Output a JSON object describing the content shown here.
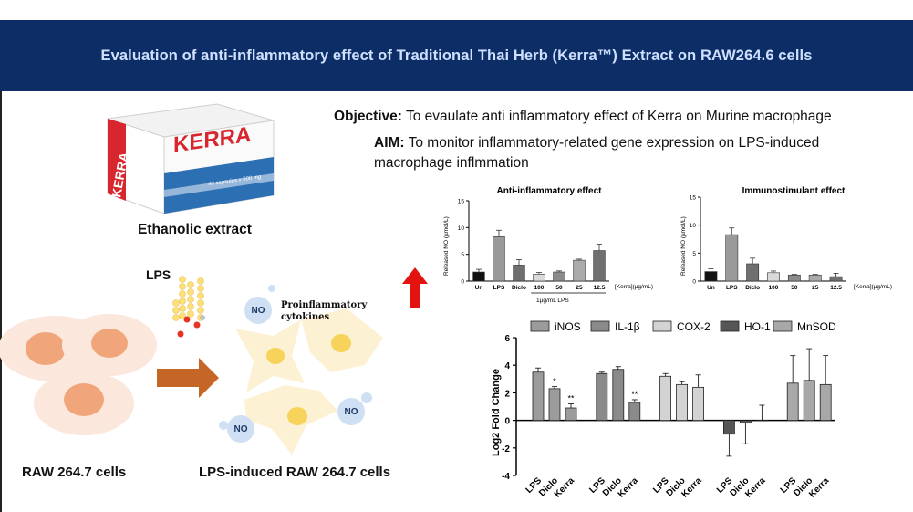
{
  "banner": {
    "title": "Evaluation of anti-inflammatory effect of Traditional Thai Herb (Kerra™) Extract on RAW264.6 cells"
  },
  "product": {
    "brand": "KERRA",
    "side_brand": "KERRA",
    "capsules": "40 capsules x 500 mg",
    "caption": "Ethanolic extract"
  },
  "objective": {
    "label": "Objective:",
    "text": "To evaulate anti inflammatory effect of Kerra on Murine macrophage"
  },
  "aim": {
    "label": "AIM:",
    "text": "To monitor inflammatory-related gene expression on LPS-induced macrophage inflmmation"
  },
  "diagram": {
    "lps": "LPS",
    "no": "NO",
    "proinflammatory": [
      "Proinflammatory",
      "cytokines"
    ],
    "raw_cells": "RAW 264.7 cells",
    "lps_cells": "LPS-induced RAW 264.7 cells"
  },
  "chart_data": [
    {
      "type": "bar",
      "title": "Anti-inflammatory effect",
      "ylabel": "Released NO (µmol/L)",
      "xlabel": "[Kerra](µg/mL)",
      "sublabel": "1µg/mL LPS",
      "categories": [
        "Un",
        "LPS",
        "Diclo",
        "100",
        "50",
        "25",
        "12.5"
      ],
      "values": [
        1.7,
        8.3,
        3.0,
        1.3,
        1.7,
        3.9,
        5.7
      ],
      "errors": [
        0.5,
        1.2,
        1.0,
        0.3,
        0.2,
        0.2,
        1.2
      ],
      "colors": [
        "#111111",
        "#9a9a9a",
        "#6f6f6f",
        "#d9d9d9",
        "#8c8c8c",
        "#aaaaaa",
        "#707070"
      ],
      "ylim": [
        0,
        15
      ],
      "yticks": [
        "0",
        "5",
        "10",
        "15"
      ]
    },
    {
      "type": "bar",
      "title": "Immunostimulant effect",
      "ylabel": "Released NO (µmol/L)",
      "xlabel": "[Kerra](µg/mL)",
      "categories": [
        "Un",
        "LPS",
        "Diclo",
        "100",
        "50",
        "25",
        "12.5"
      ],
      "values": [
        1.7,
        8.3,
        3.1,
        1.5,
        1.1,
        1.1,
        0.8
      ],
      "errors": [
        0.5,
        1.2,
        1.0,
        0.3,
        0.1,
        0.1,
        0.6
      ],
      "colors": [
        "#111111",
        "#9a9a9a",
        "#6f6f6f",
        "#d9d9d9",
        "#8c8c8c",
        "#aaaaaa",
        "#707070"
      ],
      "ylim": [
        0,
        15
      ],
      "yticks": [
        "0",
        "5",
        "10",
        "15"
      ]
    },
    {
      "type": "bar",
      "ylabel": "Log2 Fold Change",
      "ylim": [
        -4,
        6
      ],
      "yticks": [
        "-4",
        "-2",
        "0",
        "2",
        "4",
        "6"
      ],
      "legend": "top",
      "series": [
        {
          "name": "iNOS",
          "color": "#9b9b9b",
          "categories": [
            "LPS",
            "Diclo",
            "Kerra"
          ],
          "values": [
            3.5,
            2.3,
            0.9
          ],
          "errors": [
            0.3,
            0.15,
            0.3
          ],
          "marks": [
            "",
            "*",
            "**"
          ]
        },
        {
          "name": "IL-1β",
          "color": "#8a8a8a",
          "categories": [
            "LPS",
            "Diclo",
            "Kerra"
          ],
          "values": [
            3.4,
            3.7,
            1.3
          ],
          "errors": [
            0.1,
            0.2,
            0.2
          ],
          "marks": [
            "",
            "",
            "**"
          ]
        },
        {
          "name": "COX-2",
          "color": "#d3d3d3",
          "categories": [
            "LPS",
            "Diclo",
            "Kerra"
          ],
          "values": [
            3.2,
            2.6,
            2.4
          ],
          "errors": [
            0.2,
            0.2,
            0.9
          ],
          "marks": [
            "",
            "",
            ""
          ]
        },
        {
          "name": "HO-1",
          "color": "#555555",
          "categories": [
            "LPS",
            "Diclo",
            "Kerra"
          ],
          "values": [
            -1.0,
            -0.2,
            0.0
          ],
          "errors": [
            1.6,
            1.5,
            1.1
          ],
          "marks": [
            "",
            "",
            ""
          ]
        },
        {
          "name": "MnSOD",
          "color": "#a8a8a8",
          "categories": [
            "LPS",
            "Diclo",
            "Kerra"
          ],
          "values": [
            2.7,
            2.9,
            2.6
          ],
          "errors": [
            2.0,
            2.3,
            2.1
          ],
          "marks": [
            "",
            "",
            ""
          ]
        }
      ]
    }
  ]
}
